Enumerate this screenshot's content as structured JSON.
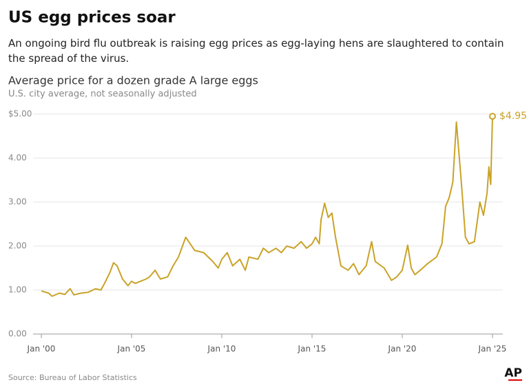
{
  "title": "US egg prices soar",
  "description": "An ongoing bird flu outbreak is raising egg prices as egg-laying hens are slaughtered to contain the spread of the virus.",
  "source": "Source: Bureau of Labor Statistics",
  "logo": "AP",
  "chart_data": {
    "type": "line",
    "title": "Average price for a dozen grade A large eggs",
    "subtitle": "U.S. city average, not seasonally adjusted",
    "x": [
      2000.0,
      2000.4,
      2000.6,
      2001.0,
      2001.3,
      2001.6,
      2001.8,
      2002.2,
      2002.6,
      2003.0,
      2003.3,
      2003.5,
      2003.8,
      2004.0,
      2004.2,
      2004.5,
      2004.8,
      2005.0,
      2005.2,
      2005.5,
      2005.8,
      2006.0,
      2006.3,
      2006.6,
      2007.0,
      2007.3,
      2007.6,
      2008.0,
      2008.5,
      2009.0,
      2009.5,
      2009.8,
      2010.0,
      2010.3,
      2010.6,
      2011.0,
      2011.3,
      2011.5,
      2012.0,
      2012.3,
      2012.6,
      2013.0,
      2013.3,
      2013.6,
      2014.0,
      2014.4,
      2014.7,
      2015.0,
      2015.2,
      2015.4,
      2015.5,
      2015.7,
      2015.9,
      2016.1,
      2016.3,
      2016.6,
      2017.0,
      2017.3,
      2017.6,
      2018.0,
      2018.3,
      2018.5,
      2019.0,
      2019.4,
      2019.7,
      2020.0,
      2020.3,
      2020.5,
      2020.7,
      2021.0,
      2021.4,
      2021.9,
      2022.2,
      2022.4,
      2022.6,
      2022.8,
      2023.0,
      2023.3,
      2023.5,
      2023.7,
      2024.0,
      2024.3,
      2024.5,
      2024.7,
      2024.8,
      2024.9,
      2025.0
    ],
    "series": [
      {
        "name": "Average price",
        "color": "#c9a227",
        "values": [
          0.98,
          0.93,
          0.86,
          0.93,
          0.9,
          1.03,
          0.89,
          0.93,
          0.95,
          1.03,
          1.0,
          1.15,
          1.4,
          1.62,
          1.55,
          1.25,
          1.1,
          1.2,
          1.15,
          1.2,
          1.25,
          1.3,
          1.45,
          1.25,
          1.3,
          1.55,
          1.75,
          2.2,
          1.9,
          1.85,
          1.65,
          1.5,
          1.7,
          1.85,
          1.55,
          1.7,
          1.45,
          1.75,
          1.7,
          1.95,
          1.85,
          1.95,
          1.85,
          2.0,
          1.95,
          2.1,
          1.95,
          2.05,
          2.2,
          2.05,
          2.6,
          2.97,
          2.65,
          2.75,
          2.2,
          1.55,
          1.45,
          1.6,
          1.35,
          1.55,
          2.1,
          1.65,
          1.5,
          1.22,
          1.3,
          1.45,
          2.02,
          1.5,
          1.35,
          1.45,
          1.6,
          1.75,
          2.05,
          2.9,
          3.1,
          3.45,
          4.82,
          3.3,
          2.2,
          2.05,
          2.1,
          3.0,
          2.7,
          3.2,
          3.8,
          3.4,
          4.95
        ],
        "value_labels": [
          null,
          null,
          null,
          null,
          null,
          null,
          null,
          null,
          null,
          null,
          null,
          null,
          null,
          null,
          null,
          null,
          null,
          null,
          null,
          null,
          null,
          null,
          null,
          null,
          null,
          null,
          null,
          null,
          null,
          null,
          null,
          null,
          null,
          null,
          null,
          null,
          null,
          null,
          null,
          null,
          null,
          null,
          null,
          null,
          null,
          null,
          null,
          null,
          null,
          null,
          null,
          null,
          null,
          null,
          null,
          null,
          null,
          null,
          null,
          null,
          null,
          null,
          null,
          null,
          null,
          null,
          null,
          null,
          null,
          null,
          null,
          null,
          null,
          null,
          null,
          null,
          null,
          null,
          null,
          null,
          null,
          null,
          null,
          null,
          null,
          null,
          "$4.95"
        ]
      }
    ],
    "xlim": [
      2000,
      2025
    ],
    "xticks": [
      {
        "value": 2000,
        "label": "Jan '00"
      },
      {
        "value": 2005,
        "label": "Jan '05"
      },
      {
        "value": 2010,
        "label": "Jan '10"
      },
      {
        "value": 2015,
        "label": "Jan '15"
      },
      {
        "value": 2020,
        "label": "Jan '20"
      },
      {
        "value": 2025,
        "label": "Jan '25"
      }
    ],
    "ylim": [
      0,
      5
    ],
    "yticks": [
      {
        "value": 0,
        "label": "0.00"
      },
      {
        "value": 1,
        "label": "1.00"
      },
      {
        "value": 2,
        "label": "2.00"
      },
      {
        "value": 3,
        "label": "3.00"
      },
      {
        "value": 4,
        "label": "4.00"
      },
      {
        "value": 5,
        "label": "$5.00"
      }
    ],
    "grid": true
  }
}
